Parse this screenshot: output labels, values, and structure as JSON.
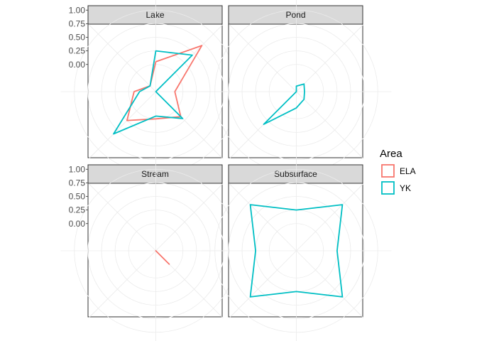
{
  "chart_data": {
    "type": "radar",
    "title": "",
    "facets": [
      "Lake",
      "Pond",
      "Stream",
      "Subsurface"
    ],
    "y_ticks": [
      "0.00",
      "0.25",
      "0.50",
      "0.75",
      "1.00"
    ],
    "ylim": [
      -0.5,
      1.25
    ],
    "axes_count": 8,
    "grid": true,
    "legend": {
      "title": "Area",
      "position": "right",
      "entries": [
        {
          "name": "ELA",
          "color": "#F8766D"
        },
        {
          "name": "YK",
          "color": "#00BFC4"
        }
      ]
    },
    "series": [
      {
        "facet": "Lake",
        "name": "ELA",
        "color": "#F8766D",
        "values": [
          0.05,
          0.7,
          -0.15,
          0.15,
          0.0,
          0.25,
          -0.1,
          -0.35
        ]
      },
      {
        "facet": "Lake",
        "name": "YK",
        "color": "#00BFC4",
        "values": [
          0.25,
          0.45,
          -0.5,
          0.2,
          -0.05,
          0.6,
          -0.2,
          -0.35
        ]
      },
      {
        "facet": "Pond",
        "name": "YK",
        "color": "#00BFC4",
        "values": [
          -0.4,
          -0.3,
          -0.35,
          -0.3,
          -0.2,
          0.35,
          -0.5,
          -0.5
        ]
      },
      {
        "facet": "Stream",
        "name": "ELA",
        "color": "#F8766D",
        "values": [
          -0.5,
          -0.5,
          -0.5,
          -0.15,
          -0.5,
          -0.5,
          -0.5,
          -0.5
        ]
      },
      {
        "facet": "Subsurface",
        "name": "YK",
        "color": "#00BFC4",
        "values": [
          0.25,
          0.7,
          0.25,
          0.7,
          0.25,
          0.7,
          0.25,
          0.7
        ]
      }
    ]
  }
}
